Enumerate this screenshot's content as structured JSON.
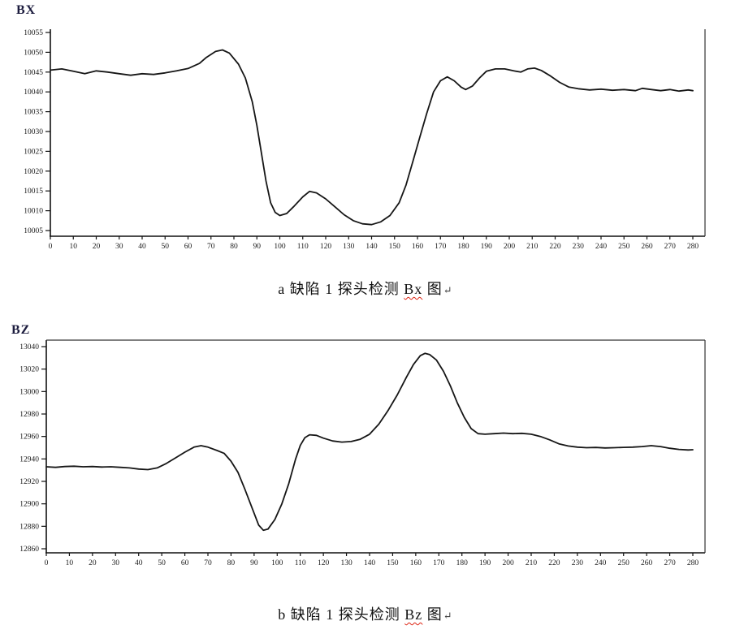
{
  "page_background": "#ffffff",
  "chart_data": [
    {
      "type": "line",
      "title": "BX",
      "caption": {
        "label": "a",
        "text_before": " 缺陷 1 探头检测 ",
        "underlined": "Bx",
        "text_after": " 图",
        "paragraph_mark": "↵"
      },
      "xlabel": "",
      "ylabel": "",
      "xlim": [
        0,
        280
      ],
      "ylim": [
        10005,
        10055
      ],
      "grid": false,
      "legend": "none",
      "line_color": "#161616",
      "x_ticks": [
        0,
        10,
        20,
        30,
        40,
        50,
        60,
        70,
        80,
        90,
        100,
        110,
        120,
        130,
        140,
        150,
        160,
        170,
        180,
        190,
        200,
        210,
        220,
        230,
        240,
        250,
        260,
        270,
        280
      ],
      "y_ticks": [
        10055,
        10050,
        10045,
        10040,
        10035,
        10030,
        10025,
        10020,
        10015,
        10010,
        10005
      ],
      "points": [
        [
          0,
          10045.5
        ],
        [
          5,
          10045.8
        ],
        [
          10,
          10045.2
        ],
        [
          15,
          10044.6
        ],
        [
          20,
          10045.3
        ],
        [
          25,
          10045.0
        ],
        [
          30,
          10044.6
        ],
        [
          35,
          10044.2
        ],
        [
          40,
          10044.6
        ],
        [
          45,
          10044.4
        ],
        [
          50,
          10044.8
        ],
        [
          55,
          10045.3
        ],
        [
          60,
          10045.9
        ],
        [
          65,
          10047.2
        ],
        [
          68,
          10048.7
        ],
        [
          72,
          10050.2
        ],
        [
          75,
          10050.6
        ],
        [
          78,
          10049.8
        ],
        [
          82,
          10047.0
        ],
        [
          85,
          10043.5
        ],
        [
          88,
          10037.5
        ],
        [
          90,
          10031.5
        ],
        [
          92,
          10024.5
        ],
        [
          94,
          10017.5
        ],
        [
          96,
          10012.0
        ],
        [
          98,
          10009.6
        ],
        [
          100,
          10008.8
        ],
        [
          103,
          10009.3
        ],
        [
          106,
          10011.0
        ],
        [
          110,
          10013.5
        ],
        [
          113,
          10014.9
        ],
        [
          116,
          10014.5
        ],
        [
          120,
          10013.0
        ],
        [
          124,
          10011.0
        ],
        [
          128,
          10009.0
        ],
        [
          132,
          10007.5
        ],
        [
          136,
          10006.7
        ],
        [
          140,
          10006.5
        ],
        [
          144,
          10007.2
        ],
        [
          148,
          10008.8
        ],
        [
          152,
          10012.0
        ],
        [
          155,
          10016.5
        ],
        [
          158,
          10022.5
        ],
        [
          161,
          10028.5
        ],
        [
          164,
          10034.5
        ],
        [
          167,
          10040.0
        ],
        [
          170,
          10042.8
        ],
        [
          173,
          10043.8
        ],
        [
          176,
          10042.8
        ],
        [
          179,
          10041.2
        ],
        [
          181,
          10040.6
        ],
        [
          184,
          10041.5
        ],
        [
          187,
          10043.5
        ],
        [
          190,
          10045.2
        ],
        [
          194,
          10045.8
        ],
        [
          198,
          10045.8
        ],
        [
          202,
          10045.3
        ],
        [
          205,
          10045.0
        ],
        [
          208,
          10045.8
        ],
        [
          211,
          10046.0
        ],
        [
          214,
          10045.4
        ],
        [
          218,
          10044.0
        ],
        [
          222,
          10042.4
        ],
        [
          226,
          10041.2
        ],
        [
          230,
          10040.8
        ],
        [
          235,
          10040.5
        ],
        [
          240,
          10040.7
        ],
        [
          245,
          10040.4
        ],
        [
          250,
          10040.6
        ],
        [
          255,
          10040.3
        ],
        [
          258,
          10040.9
        ],
        [
          262,
          10040.6
        ],
        [
          266,
          10040.3
        ],
        [
          270,
          10040.6
        ],
        [
          274,
          10040.2
        ],
        [
          278,
          10040.5
        ],
        [
          280,
          10040.3
        ]
      ]
    },
    {
      "type": "line",
      "title": "BZ",
      "caption": {
        "label": "b",
        "text_before": " 缺陷 1 探头检测 ",
        "underlined": "Bz",
        "text_after": " 图",
        "paragraph_mark": "↵"
      },
      "xlabel": "",
      "ylabel": "",
      "xlim": [
        0,
        280
      ],
      "ylim": [
        12860,
        13040
      ],
      "grid": false,
      "legend": "none",
      "line_color": "#161616",
      "x_ticks": [
        0,
        10,
        20,
        30,
        40,
        50,
        60,
        70,
        80,
        90,
        100,
        110,
        120,
        130,
        140,
        150,
        160,
        170,
        180,
        190,
        200,
        210,
        220,
        230,
        240,
        250,
        260,
        270,
        280
      ],
      "y_ticks": [
        13040,
        13020,
        13000,
        12980,
        12960,
        12940,
        12920,
        12900,
        12880,
        12860
      ],
      "points": [
        [
          0,
          12933.0
        ],
        [
          4,
          12932.5
        ],
        [
          8,
          12933.2
        ],
        [
          12,
          12933.5
        ],
        [
          16,
          12933.0
        ],
        [
          20,
          12933.2
        ],
        [
          24,
          12932.8
        ],
        [
          28,
          12933.0
        ],
        [
          32,
          12932.5
        ],
        [
          36,
          12932.0
        ],
        [
          40,
          12931.0
        ],
        [
          44,
          12930.5
        ],
        [
          48,
          12932.0
        ],
        [
          52,
          12936.0
        ],
        [
          56,
          12941.0
        ],
        [
          60,
          12946.0
        ],
        [
          64,
          12950.5
        ],
        [
          67,
          12951.8
        ],
        [
          70,
          12950.5
        ],
        [
          74,
          12947.5
        ],
        [
          77,
          12945.0
        ],
        [
          80,
          12938.0
        ],
        [
          83,
          12928.0
        ],
        [
          86,
          12913.0
        ],
        [
          89,
          12897.0
        ],
        [
          92,
          12881.0
        ],
        [
          94,
          12876.5
        ],
        [
          96,
          12877.5
        ],
        [
          99,
          12886.0
        ],
        [
          102,
          12900.0
        ],
        [
          105,
          12918.0
        ],
        [
          108,
          12940.0
        ],
        [
          110,
          12952.0
        ],
        [
          112,
          12959.0
        ],
        [
          114,
          12961.5
        ],
        [
          117,
          12961.0
        ],
        [
          120,
          12958.5
        ],
        [
          124,
          12956.0
        ],
        [
          128,
          12955.0
        ],
        [
          132,
          12955.5
        ],
        [
          136,
          12957.5
        ],
        [
          140,
          12962.0
        ],
        [
          144,
          12971.0
        ],
        [
          148,
          12983.0
        ],
        [
          152,
          12997.0
        ],
        [
          156,
          13013.0
        ],
        [
          159,
          13024.0
        ],
        [
          162,
          13032.0
        ],
        [
          164,
          13034.0
        ],
        [
          166,
          13033.0
        ],
        [
          169,
          13028.0
        ],
        [
          172,
          13018.0
        ],
        [
          175,
          13005.0
        ],
        [
          178,
          12990.0
        ],
        [
          181,
          12977.0
        ],
        [
          184,
          12967.0
        ],
        [
          187,
          12962.5
        ],
        [
          190,
          12962.0
        ],
        [
          194,
          12962.5
        ],
        [
          198,
          12963.0
        ],
        [
          202,
          12962.5
        ],
        [
          206,
          12962.8
        ],
        [
          210,
          12962.0
        ],
        [
          214,
          12960.0
        ],
        [
          218,
          12957.0
        ],
        [
          222,
          12953.5
        ],
        [
          226,
          12951.5
        ],
        [
          230,
          12950.5
        ],
        [
          234,
          12950.0
        ],
        [
          238,
          12950.2
        ],
        [
          242,
          12949.8
        ],
        [
          246,
          12950.0
        ],
        [
          250,
          12950.3
        ],
        [
          254,
          12950.5
        ],
        [
          258,
          12951.0
        ],
        [
          262,
          12951.8
        ],
        [
          266,
          12951.0
        ],
        [
          270,
          12949.5
        ],
        [
          274,
          12948.5
        ],
        [
          278,
          12948.0
        ],
        [
          280,
          12948.2
        ]
      ]
    }
  ]
}
